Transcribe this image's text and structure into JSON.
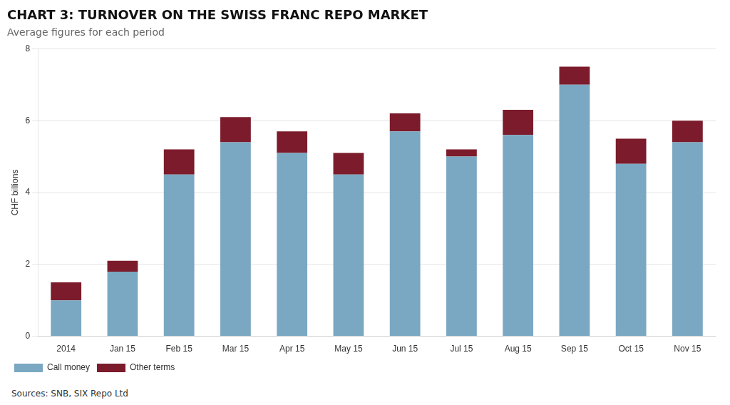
{
  "chart_data": {
    "type": "bar",
    "stacked": true,
    "title": "CHART 3: TURNOVER ON THE SWISS FRANC REPO MARKET",
    "subtitle": "Average figures for each period",
    "ylabel": "CHF billions",
    "source": "Sources: SNB, SIX Repo Ltd",
    "categories": [
      "2014",
      "Jan 15",
      "Feb 15",
      "Mar 15",
      "Apr 15",
      "May 15",
      "Jun 15",
      "Jul 15",
      "Aug 15",
      "Sep 15",
      "Oct 15",
      "Nov 15"
    ],
    "series": [
      {
        "name": "Call money",
        "color": "#7AA8C2",
        "values": [
          1.0,
          1.8,
          4.5,
          5.4,
          5.1,
          4.5,
          5.7,
          5.0,
          5.6,
          7.0,
          4.8,
          5.4
        ]
      },
      {
        "name": "Other terms",
        "color": "#7B1B2B",
        "values": [
          0.5,
          0.3,
          0.7,
          0.7,
          0.6,
          0.6,
          0.5,
          0.2,
          0.7,
          0.5,
          0.7,
          0.6
        ]
      }
    ],
    "ylim": [
      0,
      8
    ],
    "yticks": [
      0,
      2,
      4,
      6,
      8
    ],
    "grid": true,
    "legend": "bottom"
  }
}
